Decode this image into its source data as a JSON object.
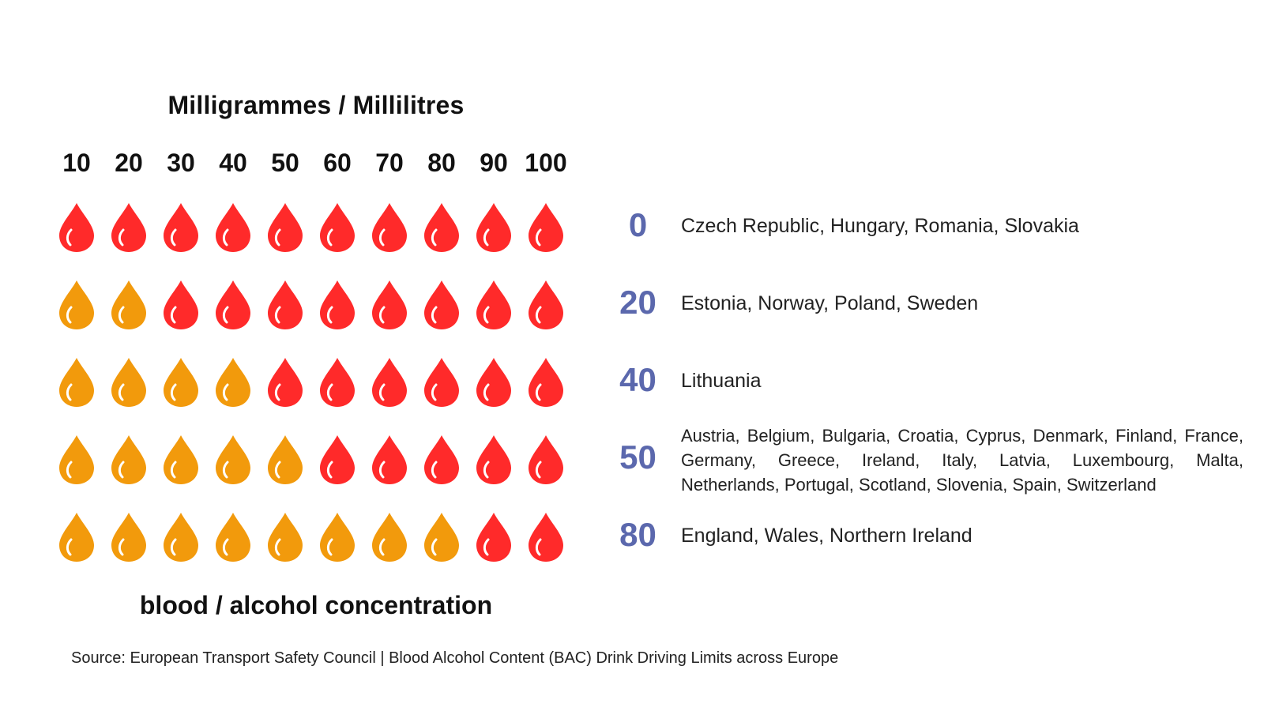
{
  "chart_data": {
    "type": "table",
    "title": "Milligrammes / Millilitres",
    "xlabel": "blood / alcohol concentration",
    "columns": [
      "10",
      "20",
      "30",
      "40",
      "50",
      "60",
      "70",
      "80",
      "90",
      "100"
    ],
    "rows": [
      {
        "limit": "0",
        "orange_drops": 0,
        "countries": "Czech Republic, Hungary, Romania, Slovakia"
      },
      {
        "limit": "20",
        "orange_drops": 2,
        "countries": "Estonia, Norway, Poland, Sweden"
      },
      {
        "limit": "40",
        "orange_drops": 4,
        "countries": "Lithuania"
      },
      {
        "limit": "50",
        "orange_drops": 5,
        "countries": "Austria, Belgium, Bulgaria, Croatia, Cyprus, Denmark, Finland, France, Germany, Greece, Ireland, Italy, Latvia, Luxembourg, Malta, Netherlands, Portugal, Scotland, Slovenia, Spain, Switzerland"
      },
      {
        "limit": "80",
        "orange_drops": 8,
        "countries": "England, Wales, Northern Ireland"
      }
    ],
    "colors": {
      "under_limit": "#f29a0c",
      "over_limit": "#ff2a2a",
      "limit_value": "#5b68ad"
    },
    "icon": "blood-drop-icon"
  },
  "source": "Source: European Transport Safety Council | Blood Alcohol Content (BAC) Drink Driving Limits across Europe"
}
